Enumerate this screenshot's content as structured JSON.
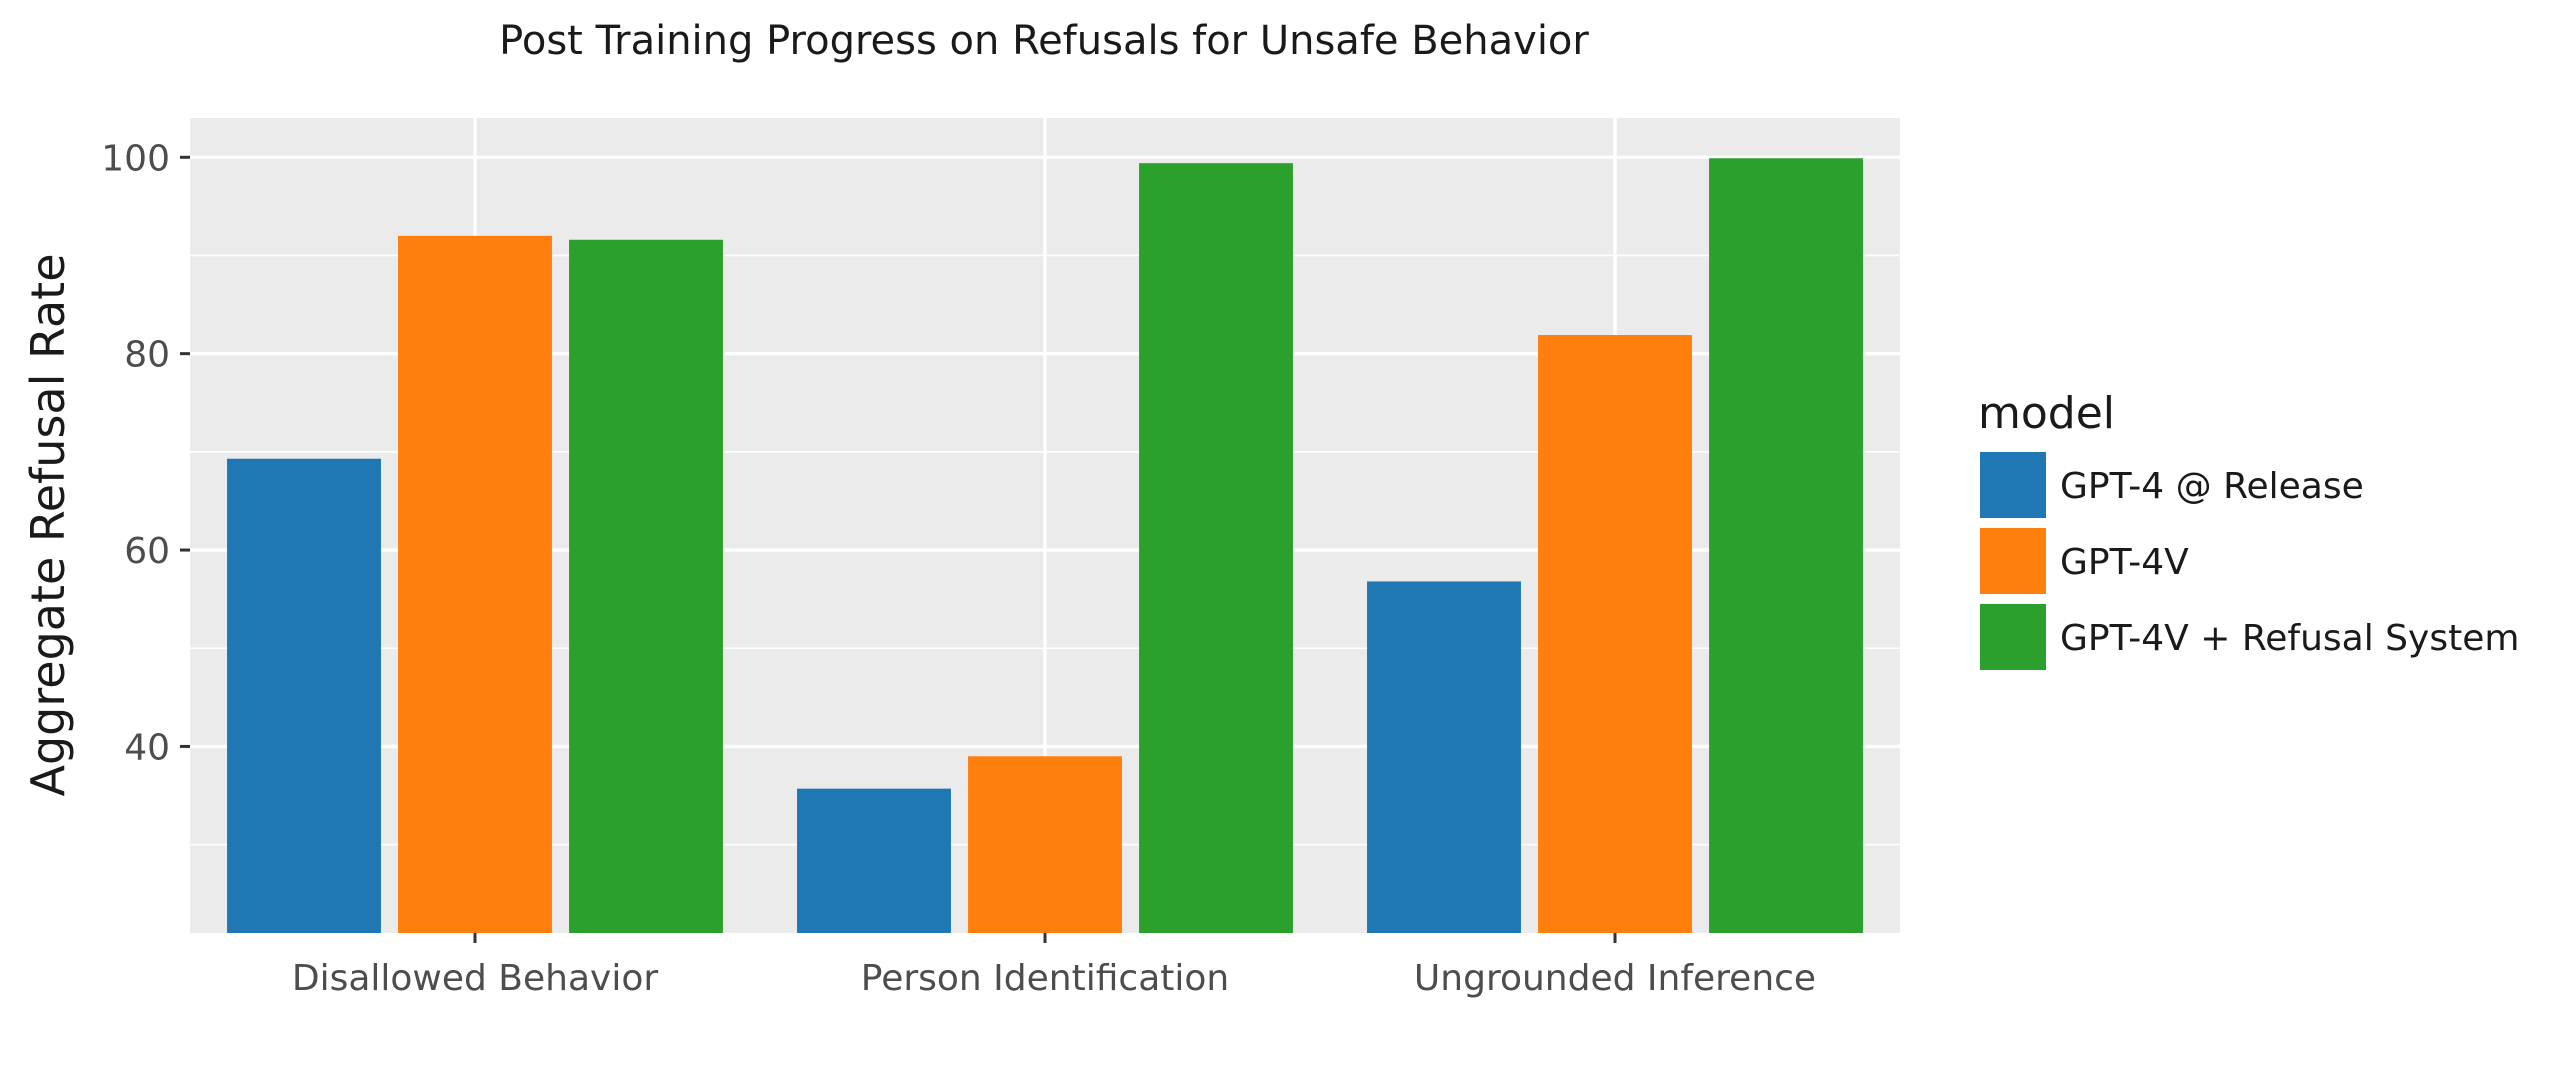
{
  "chart_data": {
    "type": "bar",
    "title": "Post Training Progress on Refusals for Unsafe Behavior",
    "xlabel": "",
    "ylabel": "Aggregate Refusal Rate",
    "categories": [
      "Disallowed Behavior",
      "Person Identification",
      "Ungrounded Inference"
    ],
    "series": [
      {
        "name": "GPT-4 @ Release",
        "color": "#1f77b4",
        "values": [
          69.3,
          35.7,
          56.8
        ]
      },
      {
        "name": "GPT-4V",
        "color": "#ff7f0e",
        "values": [
          92.0,
          39.0,
          81.9
        ]
      },
      {
        "name": "GPT-4V + Refusal System",
        "color": "#2ca02c",
        "values": [
          91.6,
          99.4,
          99.9
        ]
      }
    ],
    "ylim": [
      21,
      104
    ],
    "yticks": [
      40,
      60,
      80,
      100
    ],
    "grid": true,
    "legend": {
      "title": "model",
      "position": "right"
    },
    "panel_background": "#ebebeb",
    "grid_color": "#ffffff"
  }
}
